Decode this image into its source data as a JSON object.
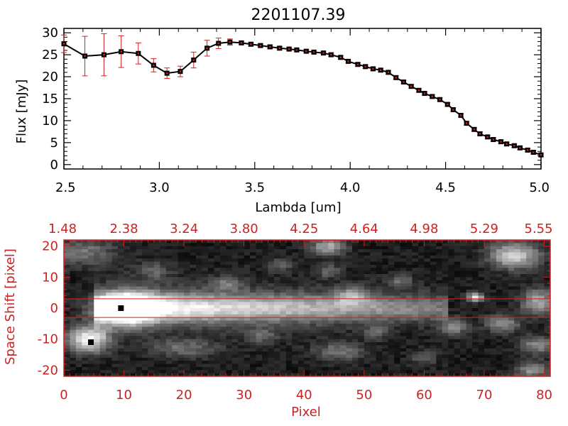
{
  "title": "2201107.39",
  "colors": {
    "red": "#cc2222",
    "black": "#000000",
    "background": "#ffffff"
  },
  "chart_data": [
    {
      "type": "line",
      "title": "2201107.39",
      "xlabel": "Lambda [um]",
      "ylabel": "Flux [mJy]",
      "xlim": [
        2.5,
        5.0
      ],
      "ylim": [
        -1,
        31
      ],
      "xticks": [
        {
          "value": 2.5,
          "label": "2.5"
        },
        {
          "value": 3.0,
          "label": "3.0"
        },
        {
          "value": 3.5,
          "label": "3.5"
        },
        {
          "value": 4.0,
          "label": "4.0"
        },
        {
          "value": 4.5,
          "label": "4.5"
        },
        {
          "value": 5.0,
          "label": "5.0"
        }
      ],
      "yticks": [
        {
          "value": 0,
          "label": "0"
        },
        {
          "value": 5,
          "label": "5"
        },
        {
          "value": 10,
          "label": "10"
        },
        {
          "value": 15,
          "label": "15"
        },
        {
          "value": 20,
          "label": "20"
        },
        {
          "value": 25,
          "label": "25"
        },
        {
          "value": 30,
          "label": "30"
        }
      ],
      "series": [
        {
          "name": "flux",
          "x": [
            2.5,
            2.61,
            2.71,
            2.8,
            2.89,
            2.97,
            3.04,
            3.11,
            3.18,
            3.25,
            3.31,
            3.37,
            3.43,
            3.48,
            3.53,
            3.58,
            3.63,
            3.68,
            3.72,
            3.77,
            3.81,
            3.86,
            3.9,
            3.95,
            3.99,
            4.04,
            4.08,
            4.12,
            4.16,
            4.2,
            4.24,
            4.28,
            4.32,
            4.36,
            4.39,
            4.43,
            4.47,
            4.51,
            4.54,
            4.58,
            4.61,
            4.65,
            4.68,
            4.72,
            4.75,
            4.79,
            4.82,
            4.86,
            4.89,
            4.93,
            4.96,
            5.0
          ],
          "y": [
            27.5,
            24.7,
            25.0,
            25.7,
            25.3,
            22.6,
            20.8,
            21.2,
            23.8,
            26.5,
            27.6,
            27.9,
            27.7,
            27.4,
            27.1,
            26.8,
            26.5,
            26.3,
            26.1,
            25.8,
            25.6,
            25.4,
            25.0,
            24.4,
            23.5,
            22.8,
            22.3,
            21.8,
            21.5,
            21.0,
            19.8,
            18.8,
            17.8,
            16.9,
            16.2,
            15.5,
            14.8,
            13.7,
            12.5,
            11.2,
            9.4,
            8.0,
            7.0,
            6.3,
            5.7,
            5.2,
            4.7,
            4.3,
            3.8,
            3.3,
            2.8,
            2.2
          ],
          "err": [
            2.0,
            4.5,
            4.8,
            3.6,
            2.4,
            1.5,
            1.2,
            1.2,
            1.8,
            1.8,
            1.2,
            0.7,
            0.4,
            0.4,
            0.4,
            0.4,
            0.4,
            0.4,
            0.4,
            0.4,
            0.4,
            0.4,
            0.4,
            0.4,
            0.4,
            0.4,
            0.4,
            0.4,
            0.4,
            0.4,
            0.4,
            0.4,
            0.4,
            0.4,
            0.4,
            0.4,
            0.4,
            0.4,
            0.4,
            0.4,
            0.4,
            0.4,
            0.4,
            0.4,
            0.4,
            0.4,
            0.4,
            0.4,
            0.4,
            0.4,
            0.4,
            0.4
          ]
        }
      ]
    },
    {
      "type": "heatmap",
      "xlabel": "Pixel",
      "ylabel": "Space Shift [pixel]",
      "xlim": [
        0,
        81
      ],
      "ylim": [
        -22,
        22
      ],
      "xticks": [
        {
          "value": 0,
          "label": "0"
        },
        {
          "value": 10,
          "label": "10"
        },
        {
          "value": 20,
          "label": "20"
        },
        {
          "value": 30,
          "label": "30"
        },
        {
          "value": 40,
          "label": "40"
        },
        {
          "value": 50,
          "label": "50"
        },
        {
          "value": 60,
          "label": "60"
        },
        {
          "value": 70,
          "label": "70"
        },
        {
          "value": 80,
          "label": "80"
        }
      ],
      "yticks": [
        {
          "value": 20,
          "label": "20"
        },
        {
          "value": 10,
          "label": "10"
        },
        {
          "value": 0,
          "label": "0"
        },
        {
          "value": -10,
          "label": "-10"
        },
        {
          "value": -20,
          "label": "-20"
        }
      ],
      "top_axis_labels": [
        "1.48",
        "2.38",
        "3.24",
        "3.80",
        "4.25",
        "4.64",
        "4.98",
        "5.29",
        "5.55"
      ],
      "extraction_lines": [
        3,
        -3
      ],
      "source_markers": [
        {
          "x": 9.5,
          "y": 0
        },
        {
          "x": 4.5,
          "y": -11
        }
      ],
      "spectrum_trace": {
        "x_start": 5,
        "x_end": 64,
        "y": 0
      },
      "blobs": [
        {
          "x": 4,
          "y": -10,
          "peak": 0.85,
          "sx": 2.5,
          "sy": 3
        },
        {
          "x": 10,
          "y": 0,
          "peak": 1.0,
          "sx": 3.5,
          "sy": 3.5
        },
        {
          "x": 3,
          "y": 18,
          "peak": 0.35,
          "sx": 4,
          "sy": 3
        },
        {
          "x": 20,
          "y": -13,
          "peak": 0.3,
          "sx": 4,
          "sy": 2
        },
        {
          "x": 44,
          "y": 20,
          "peak": 0.55,
          "sx": 2,
          "sy": 2
        },
        {
          "x": 48,
          "y": 4,
          "peak": 0.4,
          "sx": 2,
          "sy": 2
        },
        {
          "x": 44,
          "y": 12,
          "peak": 0.3,
          "sx": 1.5,
          "sy": 1.5
        },
        {
          "x": 36,
          "y": 14,
          "peak": 0.3,
          "sx": 1.5,
          "sy": 1.5
        },
        {
          "x": 27,
          "y": 8,
          "peak": 0.3,
          "sx": 2,
          "sy": 1.5
        },
        {
          "x": 46,
          "y": -14,
          "peak": 0.35,
          "sx": 3,
          "sy": 2
        },
        {
          "x": 65,
          "y": -6,
          "peak": 0.45,
          "sx": 1.5,
          "sy": 2
        },
        {
          "x": 68.5,
          "y": 3.5,
          "peak": 0.75,
          "sx": 1,
          "sy": 1
        },
        {
          "x": 73,
          "y": -5,
          "peak": 0.45,
          "sx": 2,
          "sy": 2
        },
        {
          "x": 75,
          "y": 17,
          "peak": 0.7,
          "sx": 3,
          "sy": 3
        },
        {
          "x": 79,
          "y": 2,
          "peak": 0.55,
          "sx": 2,
          "sy": 3
        },
        {
          "x": 79,
          "y": -12,
          "peak": 0.45,
          "sx": 2,
          "sy": 2
        },
        {
          "x": 78,
          "y": -20,
          "peak": 0.45,
          "sx": 2,
          "sy": 2
        },
        {
          "x": 56,
          "y": 9,
          "peak": 0.3,
          "sx": 1.5,
          "sy": 1.5
        },
        {
          "x": 60,
          "y": -16,
          "peak": 0.3,
          "sx": 1.5,
          "sy": 1.5
        },
        {
          "x": 15,
          "y": 12,
          "peak": 0.25,
          "sx": 2,
          "sy": 2
        },
        {
          "x": 33,
          "y": -9,
          "peak": 0.28,
          "sx": 2,
          "sy": 1.5
        },
        {
          "x": 52,
          "y": -8,
          "peak": 0.28,
          "sx": 1.5,
          "sy": 1.5
        }
      ]
    }
  ]
}
